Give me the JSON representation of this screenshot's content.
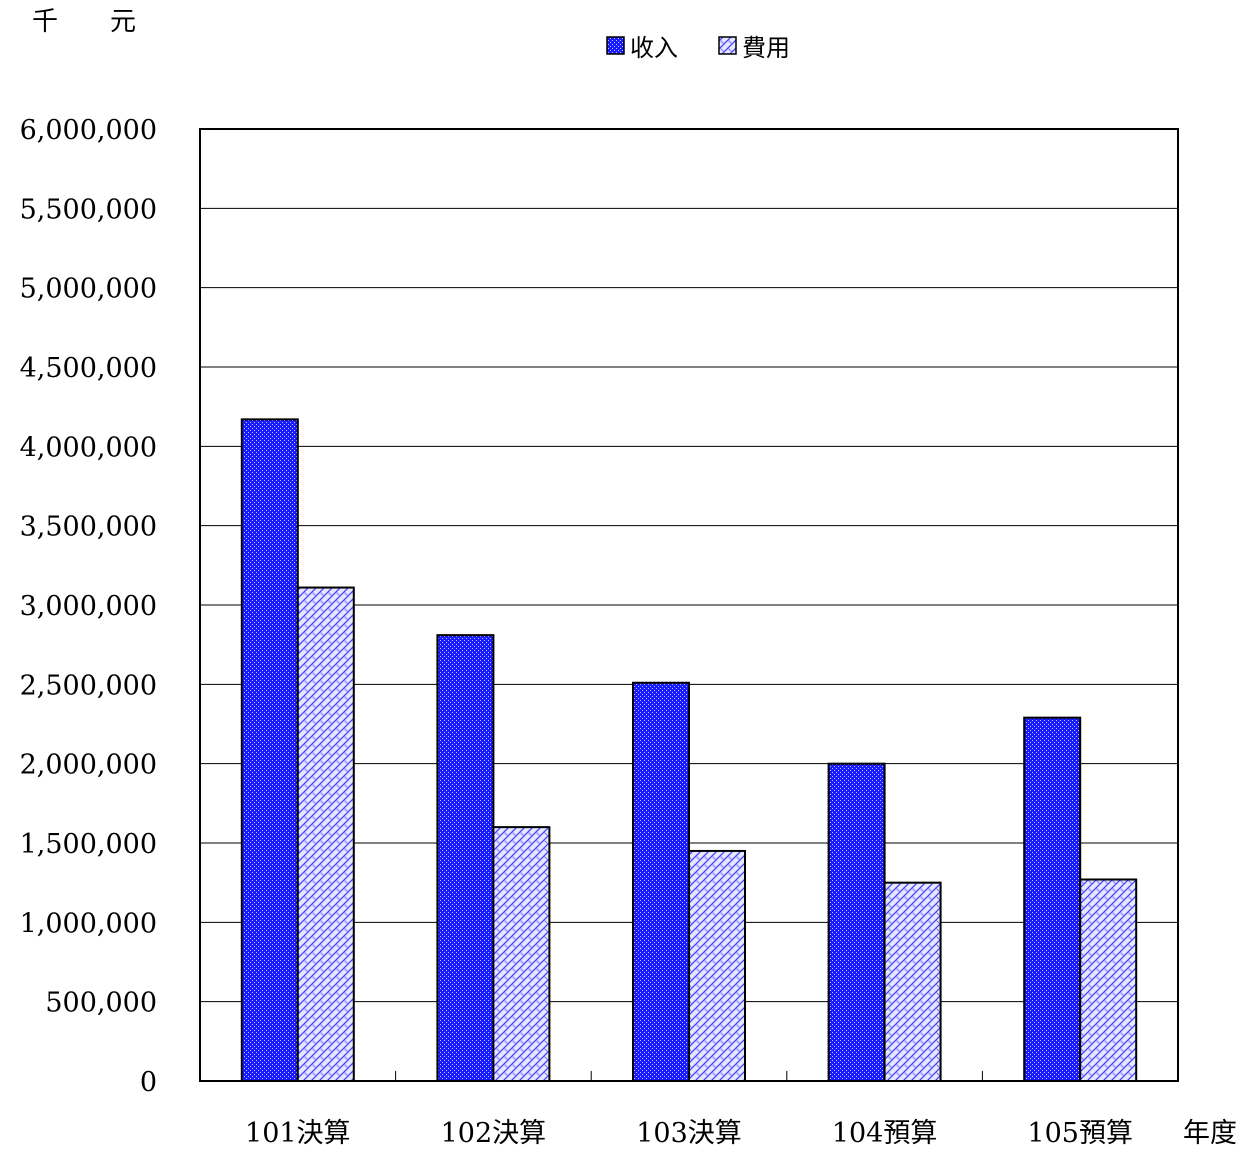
{
  "chart_data": {
    "type": "bar",
    "ylabel_unit": "千　　元",
    "xlabel": "年度",
    "categories": [
      "101決算",
      "102決算",
      "103決算",
      "104預算",
      "105預算"
    ],
    "series": [
      {
        "name": "收入",
        "color": "#1a1aff",
        "pattern": "dots",
        "values": [
          4170000,
          2810000,
          2510000,
          2000000,
          2290000
        ]
      },
      {
        "name": "費用",
        "color": "#b8b8ff",
        "pattern": "weave",
        "values": [
          3110000,
          1600000,
          1450000,
          1250000,
          1270000
        ]
      }
    ],
    "ylim": [
      0,
      6000000
    ],
    "ytick_step": 500000,
    "ytick_labels": [
      "0",
      "500,000",
      "1,000,000",
      "1,500,000",
      "2,000,000",
      "2,500,000",
      "3,000,000",
      "3,500,000",
      "4,000,000",
      "4,500,000",
      "5,000,000",
      "5,500,000",
      "6,000,000"
    ],
    "grid": true,
    "legend_position": "top-center"
  }
}
